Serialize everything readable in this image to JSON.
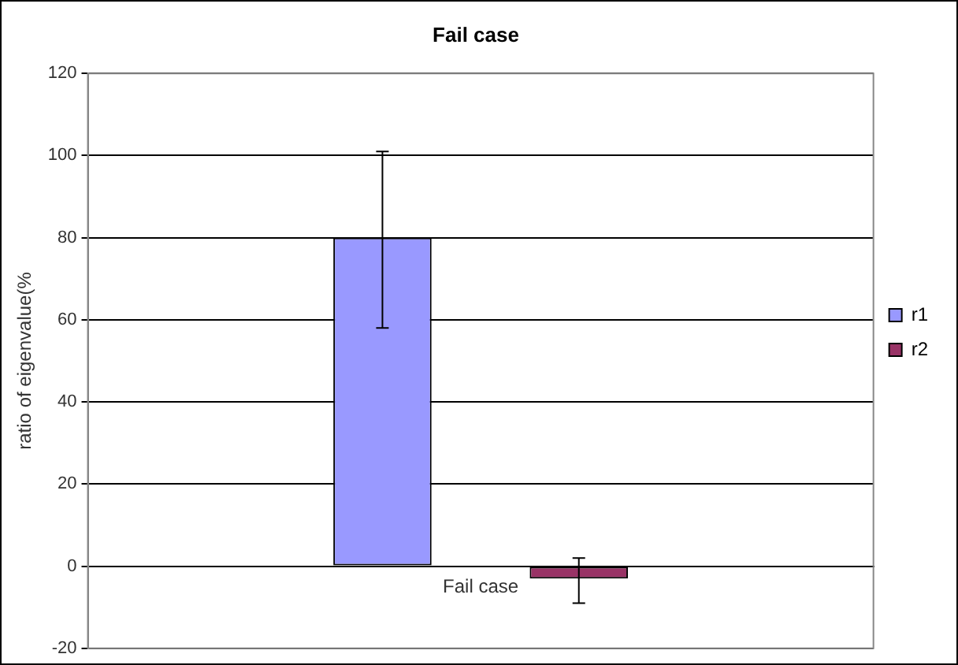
{
  "chart_data": {
    "type": "bar",
    "title": "Fail case",
    "ylabel": "ratio of eigenvalue(%",
    "categories": [
      "Fail case"
    ],
    "series": [
      {
        "name": "r1",
        "color": "#9999ff",
        "values": [
          80
        ],
        "errors": [
          [
            58,
            101
          ]
        ]
      },
      {
        "name": "r2",
        "color": "#993366",
        "values": [
          -3
        ],
        "errors": [
          [
            -9,
            2
          ]
        ]
      }
    ],
    "ylim": [
      -20,
      120
    ],
    "yticks": [
      -20,
      0,
      20,
      40,
      60,
      80,
      100,
      120
    ],
    "grid": "y",
    "legend": "right"
  }
}
